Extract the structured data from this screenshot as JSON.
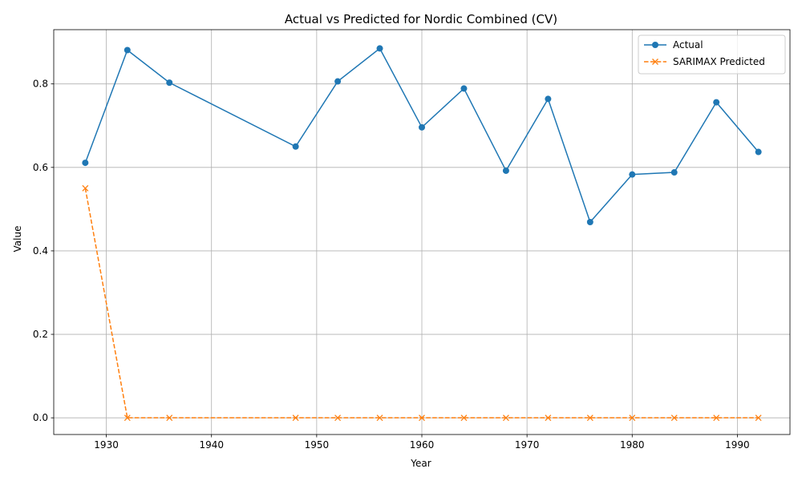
{
  "chart_data": {
    "type": "line",
    "title": "Actual vs Predicted for Nordic Combined (CV)",
    "xlabel": "Year",
    "ylabel": "Value",
    "x": [
      1928,
      1932,
      1936,
      1948,
      1952,
      1956,
      1960,
      1964,
      1968,
      1972,
      1976,
      1980,
      1984,
      1988,
      1992
    ],
    "xlim": [
      1925,
      1995
    ],
    "ylim": [
      -0.04,
      0.93
    ],
    "xticks": [
      1930,
      1940,
      1950,
      1960,
      1970,
      1980,
      1990
    ],
    "xtick_labels": [
      "1930",
      "1940",
      "1950",
      "1960",
      "1970",
      "1980",
      "1990"
    ],
    "yticks": [
      0.0,
      0.2,
      0.4,
      0.6,
      0.8
    ],
    "ytick_labels": [
      "0.0",
      "0.2",
      "0.4",
      "0.6",
      "0.8"
    ],
    "grid": true,
    "legend_position": "top-right",
    "series": [
      {
        "name": "Actual",
        "color": "#1f77b4",
        "line_style": "solid",
        "marker": "circle",
        "values": [
          0.611,
          0.881,
          0.803,
          0.65,
          0.806,
          0.885,
          0.696,
          0.789,
          0.592,
          0.764,
          0.469,
          0.583,
          0.588,
          0.756,
          0.637
        ]
      },
      {
        "name": "SARIMAX Predicted",
        "color": "#ff7f0e",
        "line_style": "dashed",
        "marker": "x",
        "values": [
          0.55,
          0.0,
          0.0,
          0.0,
          0.0,
          0.0,
          0.0,
          0.0,
          0.0,
          0.0,
          0.0,
          0.0,
          0.0,
          0.0,
          0.0
        ]
      }
    ]
  }
}
